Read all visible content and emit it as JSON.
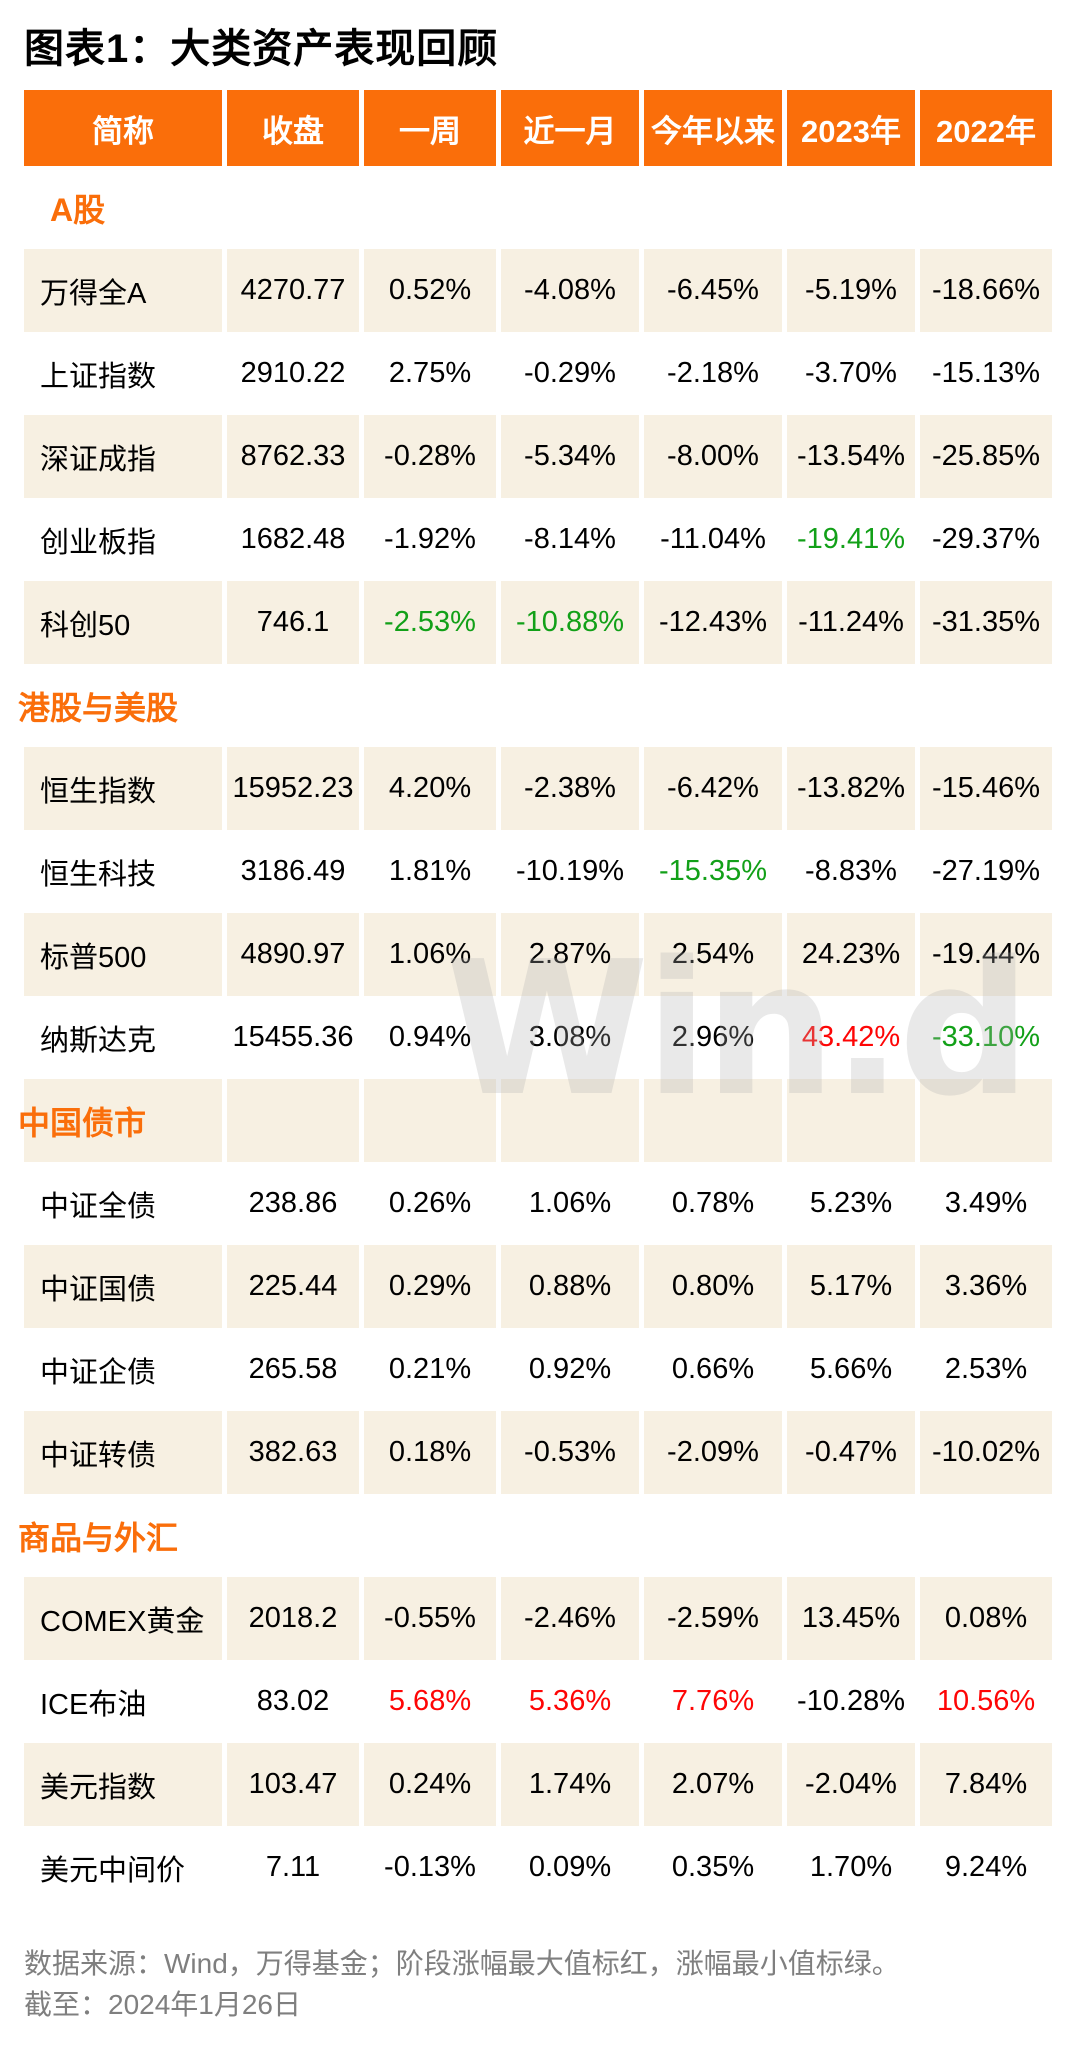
{
  "title": "图表1：大类资产表现回顾",
  "colors": {
    "accent_orange": "#FA6E0A",
    "row_beige": "#F7F0E2",
    "highlight_red": "#FE0505",
    "highlight_green": "#12A018",
    "footer_gray": "#7F7F7F"
  },
  "watermark": "Win.d",
  "footer": {
    "line1": "数据来源：Wind，万得基金；阶段涨幅最大值标红，涨幅最小值标绿。",
    "line2": "截至：2024年1月26日"
  },
  "chart_data": {
    "type": "table",
    "title": "图表1：大类资产表现回顾",
    "columns": [
      "简称",
      "收盘",
      "一周",
      "近一月",
      "今年以来",
      "2023年",
      "2022年"
    ],
    "highlight_legend": {
      "red": "阶段涨幅最大值",
      "green": "阶段涨幅最小值"
    },
    "sections": [
      {
        "label": "A股",
        "rows": [
          {
            "name": "万得全A",
            "values": [
              "4270.77",
              "0.52%",
              "-4.08%",
              "-6.45%",
              "-5.19%",
              "-18.66%"
            ],
            "red": [],
            "green": []
          },
          {
            "name": "上证指数",
            "values": [
              "2910.22",
              "2.75%",
              "-0.29%",
              "-2.18%",
              "-3.70%",
              "-15.13%"
            ],
            "red": [],
            "green": []
          },
          {
            "name": "深证成指",
            "values": [
              "8762.33",
              "-0.28%",
              "-5.34%",
              "-8.00%",
              "-13.54%",
              "-25.85%"
            ],
            "red": [],
            "green": []
          },
          {
            "name": "创业板指",
            "values": [
              "1682.48",
              "-1.92%",
              "-8.14%",
              "-11.04%",
              "-19.41%",
              "-29.37%"
            ],
            "red": [],
            "green": [
              4
            ]
          },
          {
            "name": "科创50",
            "values": [
              "746.1",
              "-2.53%",
              "-10.88%",
              "-12.43%",
              "-11.24%",
              "-31.35%"
            ],
            "red": [],
            "green": [
              1,
              2
            ]
          }
        ]
      },
      {
        "label": "港股与美股",
        "rows": [
          {
            "name": "恒生指数",
            "values": [
              "15952.23",
              "4.20%",
              "-2.38%",
              "-6.42%",
              "-13.82%",
              "-15.46%"
            ],
            "red": [],
            "green": []
          },
          {
            "name": "恒生科技",
            "values": [
              "3186.49",
              "1.81%",
              "-10.19%",
              "-15.35%",
              "-8.83%",
              "-27.19%"
            ],
            "red": [],
            "green": [
              3
            ]
          },
          {
            "name": "标普500",
            "values": [
              "4890.97",
              "1.06%",
              "2.87%",
              "2.54%",
              "24.23%",
              "-19.44%"
            ],
            "red": [],
            "green": []
          },
          {
            "name": "纳斯达克",
            "values": [
              "15455.36",
              "0.94%",
              "3.08%",
              "2.96%",
              "43.42%",
              "-33.10%"
            ],
            "red": [
              4
            ],
            "green": [
              5
            ]
          }
        ]
      },
      {
        "label": "中国债市",
        "rows": [
          {
            "name": "中证全债",
            "values": [
              "238.86",
              "0.26%",
              "1.06%",
              "0.78%",
              "5.23%",
              "3.49%"
            ],
            "red": [],
            "green": []
          },
          {
            "name": "中证国债",
            "values": [
              "225.44",
              "0.29%",
              "0.88%",
              "0.80%",
              "5.17%",
              "3.36%"
            ],
            "red": [],
            "green": []
          },
          {
            "name": "中证企债",
            "values": [
              "265.58",
              "0.21%",
              "0.92%",
              "0.66%",
              "5.66%",
              "2.53%"
            ],
            "red": [],
            "green": []
          },
          {
            "name": "中证转债",
            "values": [
              "382.63",
              "0.18%",
              "-0.53%",
              "-2.09%",
              "-0.47%",
              "-10.02%"
            ],
            "red": [],
            "green": []
          }
        ]
      },
      {
        "label": "商品与外汇",
        "rows": [
          {
            "name": "COMEX黄金",
            "values": [
              "2018.2",
              "-0.55%",
              "-2.46%",
              "-2.59%",
              "13.45%",
              "0.08%"
            ],
            "red": [],
            "green": []
          },
          {
            "name": "ICE布油",
            "values": [
              "83.02",
              "5.68%",
              "5.36%",
              "7.76%",
              "-10.28%",
              "10.56%"
            ],
            "red": [
              1,
              2,
              3,
              5
            ],
            "green": []
          },
          {
            "name": "美元指数",
            "values": [
              "103.47",
              "0.24%",
              "1.74%",
              "2.07%",
              "-2.04%",
              "7.84%"
            ],
            "red": [],
            "green": []
          },
          {
            "name": "美元中间价",
            "values": [
              "7.11",
              "-0.13%",
              "0.09%",
              "0.35%",
              "1.70%",
              "9.24%"
            ],
            "red": [],
            "green": []
          }
        ]
      }
    ]
  }
}
